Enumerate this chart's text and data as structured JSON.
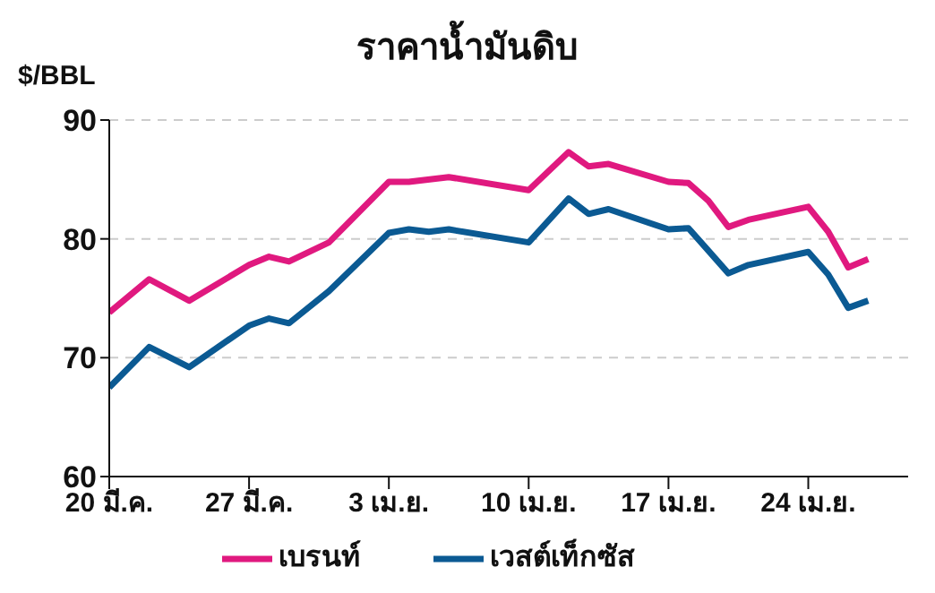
{
  "chart_data": {
    "type": "line",
    "title": "ราคาน้ำมันดิบ",
    "ylabel": "$/BBL",
    "xlim": [
      "--03-20",
      "--04-29"
    ],
    "xticks": [
      {
        "value": "--03-20",
        "label": "20 มี.ค."
      },
      {
        "value": "--03-27",
        "label": "27 มี.ค."
      },
      {
        "value": "--04-03",
        "label": "3 เม.ย."
      },
      {
        "value": "--04-10",
        "label": "10 เม.ย."
      },
      {
        "value": "--04-17",
        "label": "17 เม.ย."
      },
      {
        "value": "--04-24",
        "label": "24 เม.ย."
      }
    ],
    "ylim": [
      60,
      90
    ],
    "yticks": [
      60,
      70,
      80,
      90
    ],
    "grid": "y",
    "legend": "bottom",
    "marker": "none",
    "line_style": "solid",
    "series": [
      {
        "name": "เวสต์เท็กซัส",
        "color": "#0b5a93",
        "x": [
          "--03-20",
          "--03-22",
          "--03-24",
          "--03-27",
          "--03-28",
          "--03-29",
          "--03-31",
          "--04-03",
          "--04-04",
          "--04-05",
          "--04-06",
          "--04-10",
          "--04-12",
          "--04-13",
          "--04-14",
          "--04-17",
          "--04-18",
          "--04-19",
          "--04-20",
          "--04-21",
          "--04-24",
          "--04-25",
          "--04-26",
          "--04-27"
        ],
        "values": [
          67.5,
          70.9,
          69.2,
          72.7,
          73.3,
          72.9,
          75.6,
          80.5,
          80.8,
          80.6,
          80.8,
          79.7,
          83.4,
          82.1,
          82.5,
          80.8,
          80.9,
          79.0,
          77.1,
          77.8,
          78.9,
          77.0,
          74.2,
          74.8
        ]
      },
      {
        "name": "เบรนท์",
        "color": "#e0197f",
        "x": [
          "--03-20",
          "--03-22",
          "--03-24",
          "--03-27",
          "--03-28",
          "--03-29",
          "--03-31",
          "--04-03",
          "--04-04",
          "--04-06",
          "--04-10",
          "--04-12",
          "--04-13",
          "--04-14",
          "--04-17",
          "--04-18",
          "--04-19",
          "--04-20",
          "--04-21",
          "--04-24",
          "--04-25",
          "--04-26",
          "--04-27"
        ],
        "values": [
          73.8,
          76.6,
          74.8,
          77.8,
          78.5,
          78.1,
          79.7,
          84.8,
          84.8,
          85.2,
          84.1,
          87.3,
          86.1,
          86.3,
          84.8,
          84.7,
          83.2,
          81.0,
          81.6,
          82.7,
          80.6,
          77.6,
          78.3
        ]
      }
    ]
  }
}
